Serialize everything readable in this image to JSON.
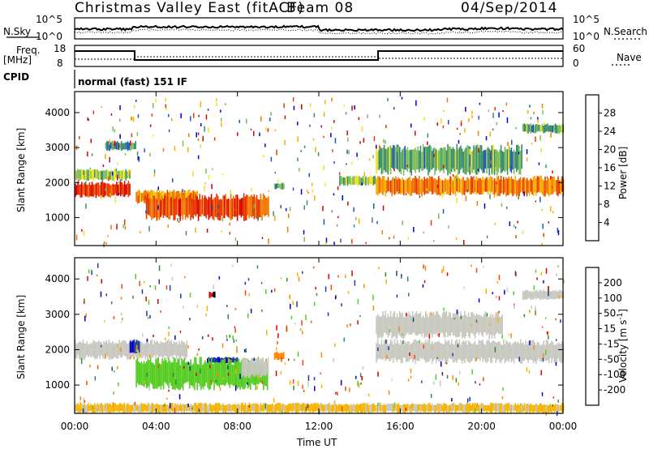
{
  "header": {
    "title": "Christmas Valley East (fitACF)",
    "beam": "Beam 08",
    "date": "04/Sep/2014"
  },
  "panels": {
    "nsky_label": "N.Sky",
    "nsearch_label": "N.Search",
    "nsky_ticks": [
      "10^5",
      "10^0"
    ],
    "nsearch_ticks": [
      "10^5",
      "10^0"
    ],
    "freq_label_1": "Freq.",
    "freq_label_2": "[MHz]",
    "freq_ticks": [
      "18",
      "8"
    ],
    "nave_label": "Nave",
    "nave_ticks": [
      "60",
      "0"
    ],
    "cpid_label": "CPID",
    "cpid_text": "normal (fast) 151 IF"
  },
  "axes": {
    "ylabel": "Slant Range [km]",
    "xlabel": "Time UT",
    "yticks": [
      "4000",
      "3000",
      "2000",
      "1000"
    ],
    "xticks": [
      "00:00",
      "04:00",
      "08:00",
      "12:00",
      "16:00",
      "20:00",
      "00:00"
    ]
  },
  "colorbars": {
    "power_label": "Power [dB]",
    "power_ticks": [
      "28",
      "24",
      "20",
      "16",
      "12",
      "8",
      "4"
    ],
    "power_colors": [
      "#0000dd",
      "#2255bb",
      "#3a8f6a",
      "#7cbc5a",
      "#f0e020",
      "#f5b000",
      "#f07800",
      "#e83a00",
      "#d80000"
    ],
    "velocity_label_1": "Velocity [m s",
    "velocity_label_2": "-1",
    "velocity_label_3": "]",
    "velocity_ticks": [
      "200",
      "100",
      "50",
      "15",
      "-15",
      "-50",
      "-100",
      "-200"
    ],
    "velocity_colors": [
      "#0000c8",
      "#1e3c9a",
      "#2f8a3a",
      "#55cc22",
      "#c8c8c0",
      "#f5b400",
      "#ff8800",
      "#ff4400",
      "#dd0000"
    ]
  },
  "chart_data": [
    {
      "type": "heatmap",
      "title": "Power",
      "xlabel": "Time UT",
      "ylabel": "Slant Range [km]",
      "xlim": [
        0,
        24
      ],
      "ylim": [
        200,
        4600
      ],
      "colorbar": {
        "label": "Power [dB]",
        "range": [
          0,
          30
        ]
      },
      "patches": [
        {
          "t0": 0.0,
          "t1": 2.7,
          "r0": 1550,
          "r1": 2050,
          "v": 26
        },
        {
          "t0": 0.0,
          "t1": 2.7,
          "r0": 2050,
          "r1": 2400,
          "v": 12
        },
        {
          "t0": 1.5,
          "t1": 3.0,
          "r0": 2900,
          "r1": 3200,
          "v": 8
        },
        {
          "t0": 3.0,
          "t1": 6.0,
          "r0": 1400,
          "r1": 1800,
          "v": 20
        },
        {
          "t0": 3.5,
          "t1": 9.5,
          "r0": 900,
          "r1": 1700,
          "v": 24
        },
        {
          "t0": 9.8,
          "t1": 10.3,
          "r0": 1800,
          "r1": 2000,
          "v": 10
        },
        {
          "t0": 13.0,
          "t1": 14.8,
          "r0": 1900,
          "r1": 2200,
          "v": 12
        },
        {
          "t0": 14.8,
          "t1": 24.0,
          "r0": 1600,
          "r1": 2200,
          "v": 22
        },
        {
          "t0": 14.8,
          "t1": 22.0,
          "r0": 2200,
          "r1": 3100,
          "v": 10
        },
        {
          "t0": 22.0,
          "t1": 24.0,
          "r0": 3400,
          "r1": 3700,
          "v": 10
        }
      ]
    },
    {
      "type": "heatmap",
      "title": "Velocity",
      "xlabel": "Time UT",
      "ylabel": "Slant Range [km]",
      "xlim": [
        0,
        24
      ],
      "ylim": [
        200,
        4600
      ],
      "colorbar": {
        "label": "Velocity [m s-1]",
        "range": [
          -200,
          200
        ]
      },
      "patches": [
        {
          "t0": 0.0,
          "t1": 5.5,
          "r0": 1700,
          "r1": 2300,
          "v": 0
        },
        {
          "t0": 2.7,
          "t1": 3.2,
          "r0": 1900,
          "r1": 2300,
          "v": 150
        },
        {
          "t0": 6.5,
          "t1": 8.0,
          "r0": 1600,
          "r1": 1800,
          "v": 150
        },
        {
          "t0": 3.0,
          "t1": 9.5,
          "r0": 850,
          "r1": 1800,
          "v": 40
        },
        {
          "t0": 8.2,
          "t1": 9.5,
          "r0": 1200,
          "r1": 1800,
          "v": 0
        },
        {
          "t0": 9.8,
          "t1": 10.3,
          "r0": 1700,
          "r1": 1950,
          "v": -80
        },
        {
          "t0": 6.6,
          "t1": 6.9,
          "r0": 3450,
          "r1": 3650,
          "v": -200
        },
        {
          "t0": 14.8,
          "t1": 24.0,
          "r0": 1600,
          "r1": 2300,
          "v": 0
        },
        {
          "t0": 14.8,
          "t1": 21.0,
          "r0": 2300,
          "r1": 3100,
          "v": 0
        },
        {
          "t0": 22.0,
          "t1": 24.0,
          "r0": 3400,
          "r1": 3700,
          "v": 0
        },
        {
          "t0": 0.0,
          "t1": 24.0,
          "r0": 200,
          "r1": 500,
          "v": -30
        }
      ]
    }
  ]
}
